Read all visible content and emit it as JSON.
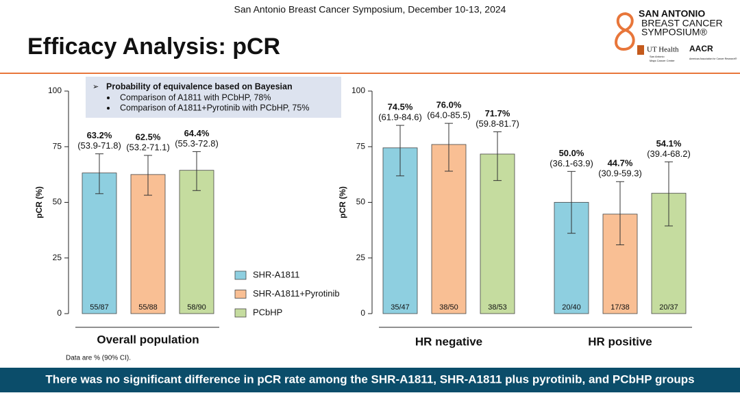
{
  "header": {
    "conference": "San Antonio Breast Cancer Symposium, December 10-13, 2024",
    "title": "Efficacy Analysis: pCR"
  },
  "logo": {
    "line1": "SAN ANTONIO",
    "line2": "BREAST CANCER",
    "line3": "SYMPOSIUM®",
    "ut": "UT Health",
    "ut_sub1": "San Antonio",
    "ut_sub2": "Mays Cancer Center",
    "aacr": "AACR",
    "aacr_sub": "American Association for Cancer Research®"
  },
  "footnote": "Data are % (90% CI).",
  "banner": "There was no significant difference in pCR rate among the SHR-A1811, SHR-A1811 plus pyrotinib, and PCbHP groups",
  "chart_data": [
    {
      "type": "bar",
      "ylabel": "pCR (%)",
      "ylim": [
        0,
        100
      ],
      "yticks": [
        0,
        25,
        50,
        75,
        100
      ],
      "legend": true,
      "annotation": {
        "title": "Probability of equivalence based on Bayesian",
        "items": [
          "Comparison of A1811 with PCbHP, 78%",
          "Comparison of A1811+Pyrotinib with PCbHP, 75%"
        ]
      },
      "categories": [
        "Overall population"
      ],
      "series": [
        {
          "name": "SHR-A1811",
          "color": "#8ecfe0",
          "values": [
            63.2
          ],
          "value_labels": [
            "63.2%"
          ],
          "ci_low": [
            53.9
          ],
          "ci_high": [
            71.8
          ],
          "ci_labels": [
            "(53.9-71.8)"
          ],
          "n_labels": [
            "55/87"
          ]
        },
        {
          "name": "SHR-A1811+Pyrotinib",
          "color": "#f9bf94",
          "values": [
            62.5
          ],
          "value_labels": [
            "62.5%"
          ],
          "ci_low": [
            53.2
          ],
          "ci_high": [
            71.1
          ],
          "ci_labels": [
            "(53.2-71.1)"
          ],
          "n_labels": [
            "55/88"
          ]
        },
        {
          "name": "PCbHP",
          "color": "#c5dc9f",
          "values": [
            64.4
          ],
          "value_labels": [
            "64.4%"
          ],
          "ci_low": [
            55.3
          ],
          "ci_high": [
            72.8
          ],
          "ci_labels": [
            "(55.3-72.8)"
          ],
          "n_labels": [
            "58/90"
          ]
        }
      ]
    },
    {
      "type": "bar",
      "ylabel": "pCR (%)",
      "ylim": [
        0,
        100
      ],
      "yticks": [
        0,
        25,
        50,
        75,
        100
      ],
      "legend": false,
      "categories": [
        "HR negative",
        "HR positive"
      ],
      "series": [
        {
          "color": "#8ecfe0",
          "values": [
            74.5,
            50.0
          ],
          "value_labels": [
            "74.5%",
            "50.0%"
          ],
          "ci_low": [
            61.9,
            36.1
          ],
          "ci_high": [
            84.6,
            63.9
          ],
          "ci_labels": [
            "(61.9-84.6)",
            "(36.1-63.9)"
          ],
          "n_labels": [
            "35/47",
            "20/40"
          ]
        },
        {
          "color": "#f9bf94",
          "values": [
            76.0,
            44.7
          ],
          "value_labels": [
            "76.0%",
            "44.7%"
          ],
          "ci_low": [
            64.0,
            30.9
          ],
          "ci_high": [
            85.5,
            59.3
          ],
          "ci_labels": [
            "(64.0-85.5)",
            "(30.9-59.3)"
          ],
          "n_labels": [
            "38/50",
            "17/38"
          ]
        },
        {
          "color": "#c5dc9f",
          "values": [
            71.7,
            54.1
          ],
          "value_labels": [
            "71.7%",
            "54.1%"
          ],
          "ci_low": [
            59.8,
            39.4
          ],
          "ci_high": [
            81.7,
            68.2
          ],
          "ci_labels": [
            "(59.8-81.7)",
            "(39.4-68.2)"
          ],
          "n_labels": [
            "38/53",
            "20/37"
          ]
        }
      ]
    }
  ]
}
